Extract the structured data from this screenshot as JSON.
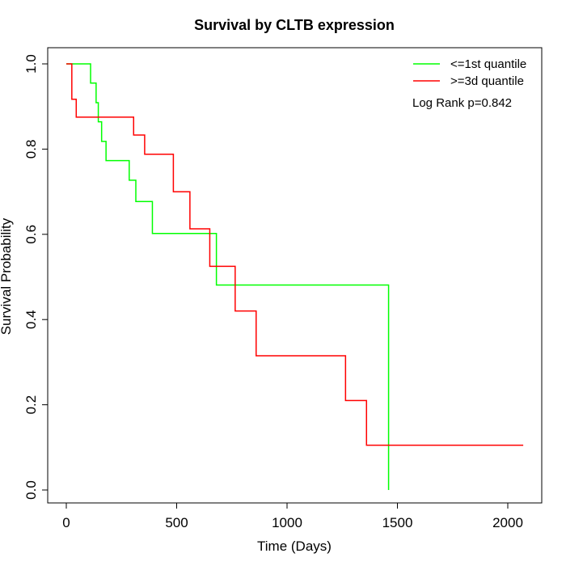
{
  "chart_data": {
    "type": "line",
    "title": "Survival by CLTB expression",
    "xlabel": "Time (Days)",
    "ylabel": "Survival Probability",
    "xlim": [
      0,
      2100
    ],
    "ylim": [
      0,
      1.0
    ],
    "xticks": [
      0,
      500,
      1000,
      1500,
      2000
    ],
    "yticks": [
      0.0,
      0.2,
      0.4,
      0.6,
      0.8,
      1.0
    ],
    "xtick_labels": [
      "0",
      "500",
      "1000",
      "1500",
      "2000"
    ],
    "ytick_labels": [
      "0.0",
      "0.2",
      "0.4",
      "0.6",
      "0.8",
      "1.0"
    ],
    "grid": false,
    "legend_position": "top-right",
    "annotation": "Log Rank p=0.842",
    "series": [
      {
        "name": "<=1st quantile",
        "color": "#00ff00",
        "step": true,
        "x": [
          0,
          110,
          135,
          145,
          160,
          180,
          285,
          315,
          390,
          680,
          1460,
          1460
        ],
        "y": [
          1.0,
          0.955,
          0.909,
          0.864,
          0.818,
          0.773,
          0.727,
          0.677,
          0.602,
          0.481,
          0.481,
          0.0
        ]
      },
      {
        "name": ">=3d quantile",
        "color": "#ff0000",
        "step": true,
        "x": [
          0,
          25,
          45,
          305,
          355,
          485,
          560,
          650,
          765,
          860,
          1265,
          1360,
          2070
        ],
        "y": [
          1.0,
          0.917,
          0.875,
          0.833,
          0.788,
          0.7,
          0.613,
          0.525,
          0.42,
          0.315,
          0.21,
          0.105,
          0.105
        ]
      }
    ]
  }
}
